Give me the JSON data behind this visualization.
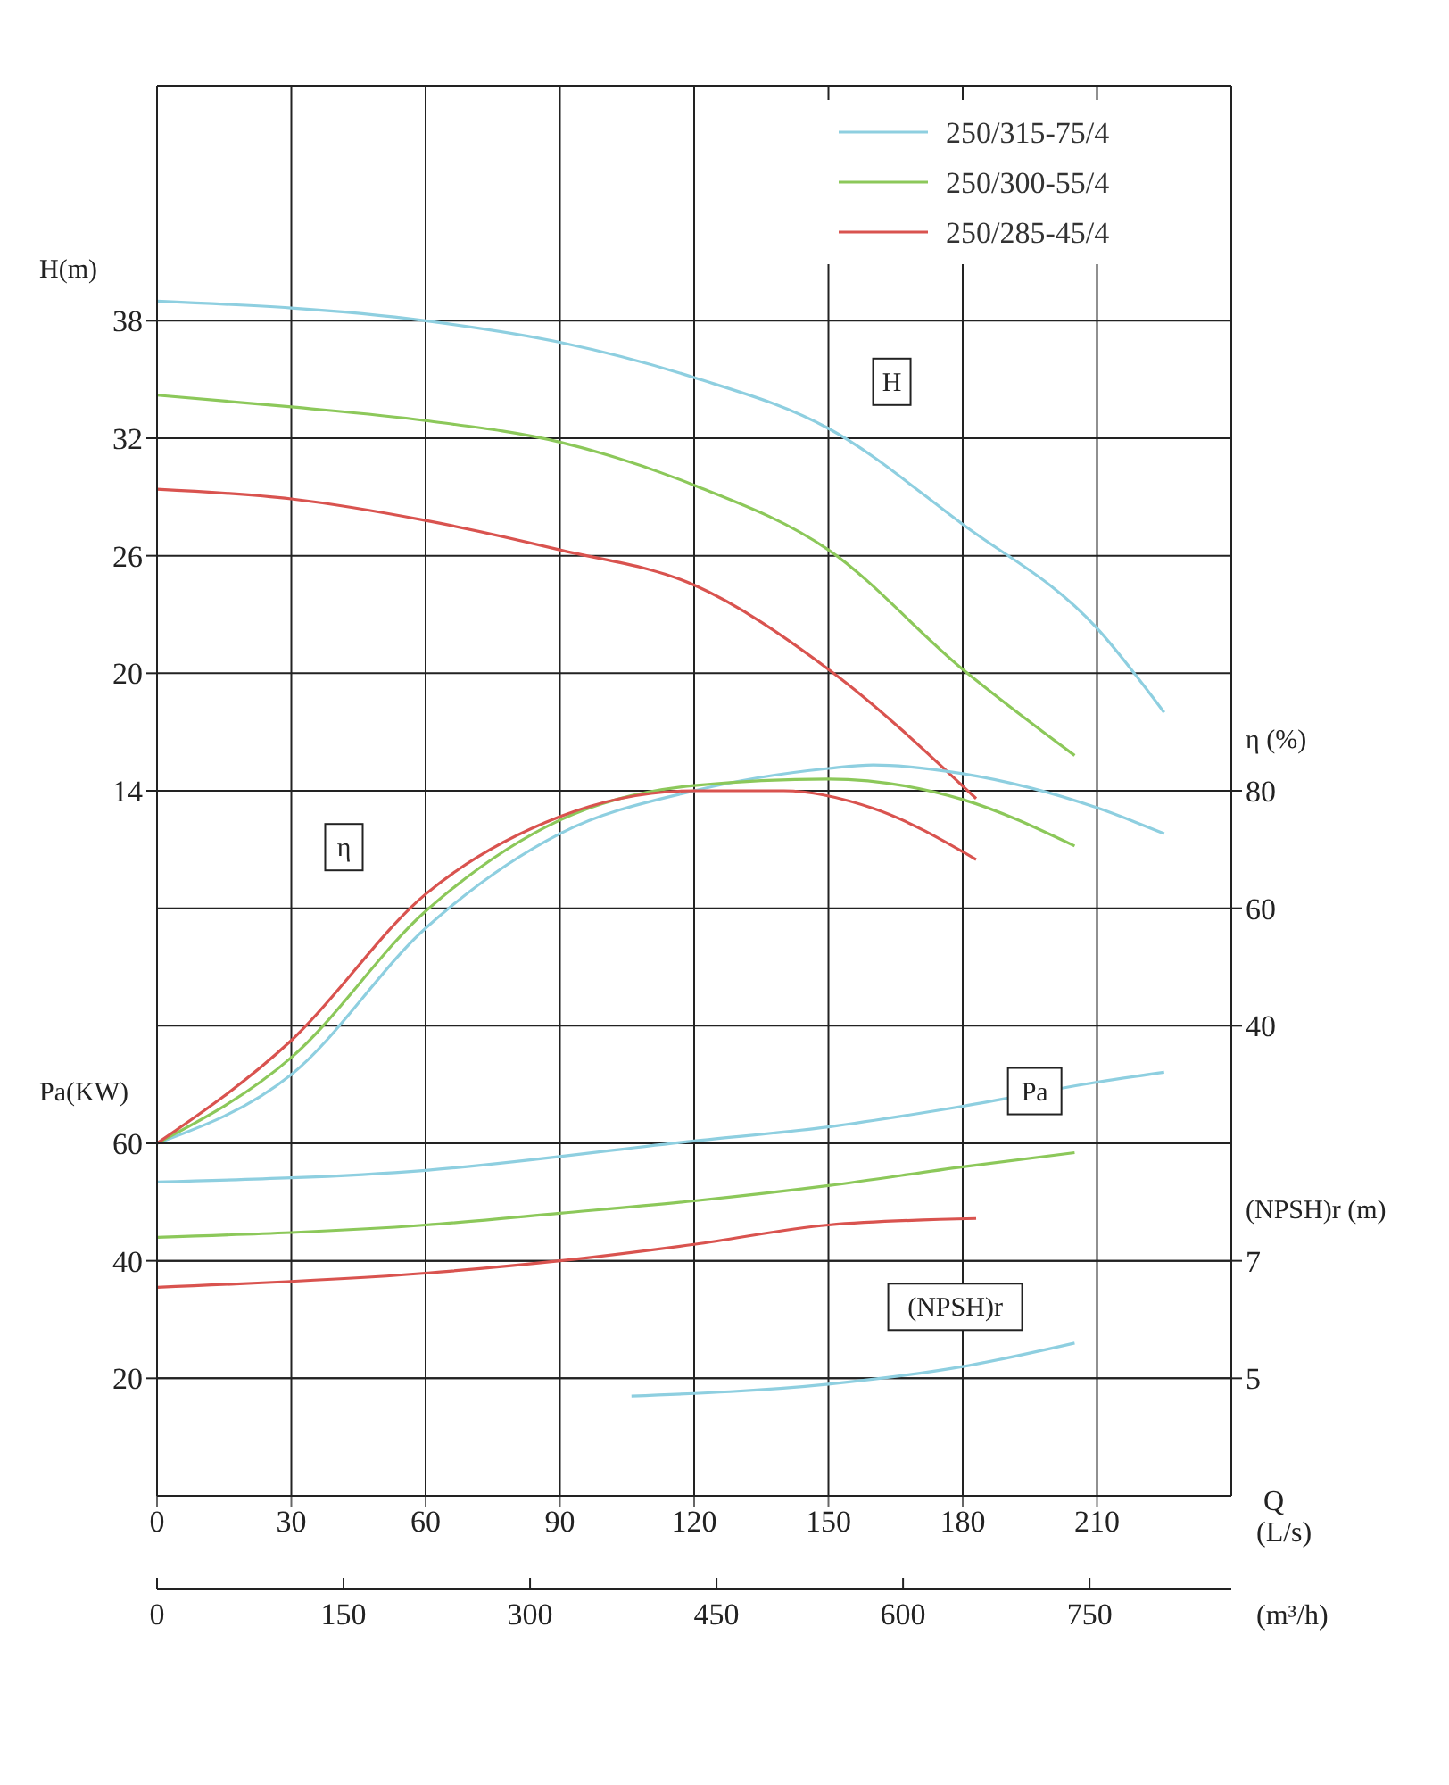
{
  "chart_data": [
    {
      "type": "line",
      "xlabel": "(L/s)",
      "ylabel": "H(m)",
      "y2label": "η (%)",
      "x2label": "(m³/h)",
      "xlim": [
        0,
        240
      ],
      "xticks": [
        0,
        30,
        60,
        90,
        120,
        150,
        180,
        210
      ],
      "x2lim": [
        0,
        864
      ],
      "x2ticks": [
        0,
        150,
        300,
        450,
        600,
        750
      ],
      "ylim": [
        -22,
        50
      ],
      "yticks": [
        14,
        20,
        26,
        32,
        38
      ],
      "y2lim": [
        -40,
        200
      ],
      "y2ticks": [
        40,
        60,
        80
      ],
      "grid": true,
      "legend": "top right",
      "marker": "none",
      "line_style": "solid",
      "annotations": [
        "H",
        "η",
        "Q"
      ],
      "series": [
        {
          "name": "250/315-75/4",
          "color": "#8ecfe0",
          "x": [
            0,
            60,
            90,
            120,
            150,
            180,
            210,
            225
          ],
          "values": [
            39,
            38,
            36.9,
            35.1,
            32.5,
            27.6,
            22.3,
            18
          ]
        },
        {
          "name": "250/300-55/4",
          "color": "#8cc85a",
          "x": [
            0,
            30,
            60,
            90,
            120,
            150,
            180,
            205
          ],
          "values": [
            34.2,
            33.6,
            32.9,
            31.8,
            29.6,
            26.3,
            20.2,
            15.8
          ]
        },
        {
          "name": "250/285-45/4",
          "color": "#d9534f",
          "x": [
            0,
            30,
            60,
            90,
            120,
            150,
            183
          ],
          "values": [
            29.4,
            28.9,
            27.8,
            26.3,
            24.5,
            20.2,
            13.6
          ]
        },
        {
          "color": "#8ecfe0",
          "axis": "y2",
          "x": [
            0,
            30,
            60,
            90,
            120,
            150,
            160,
            180,
            210,
            225
          ],
          "values": [
            20,
            31.7,
            56.6,
            72.7,
            80,
            83.8,
            84.4,
            82.9,
            77.1,
            72.7
          ]
        },
        {
          "color": "#8cc85a",
          "axis": "y2",
          "x": [
            0,
            30,
            60,
            90,
            120,
            150,
            180,
            205
          ],
          "values": [
            20,
            34.6,
            59.5,
            75,
            80.9,
            82,
            78.5,
            70.6
          ]
        },
        {
          "color": "#d9534f",
          "axis": "y2",
          "x": [
            0,
            30,
            60,
            90,
            120,
            140,
            160,
            183
          ],
          "values": [
            20,
            37.5,
            62.4,
            75.6,
            80,
            80,
            77,
            68.3
          ]
        }
      ]
    },
    {
      "type": "line",
      "ylabel": "Pa(KW)",
      "y2label": "(NPSH)r (m)",
      "xlim": [
        0,
        240
      ],
      "ylim": [
        0,
        240
      ],
      "yticks": [
        20,
        40,
        60
      ],
      "y2lim": [
        3,
        27
      ],
      "y2ticks": [
        5,
        7
      ],
      "tick_labels": "y",
      "grid": "y",
      "marker": "none",
      "line_style": "solid",
      "annotations": [
        "Pa",
        "(NPSH)r"
      ],
      "series": [
        {
          "color": "#8ecfe0",
          "x": [
            0,
            60,
            120,
            150,
            180,
            210,
            225
          ],
          "values": [
            53.4,
            55.4,
            60.4,
            62.8,
            66.3,
            70.4,
            72.1
          ]
        },
        {
          "color": "#8cc85a",
          "x": [
            0,
            60,
            90,
            120,
            150,
            180,
            205
          ],
          "values": [
            44,
            46.1,
            48.1,
            50.2,
            52.8,
            56,
            58.4
          ]
        },
        {
          "color": "#d9534f",
          "x": [
            0,
            60,
            90,
            120,
            150,
            183
          ],
          "values": [
            35.5,
            37.9,
            40,
            42.8,
            46.1,
            47.2
          ]
        },
        {
          "color": "#8ecfe0",
          "axis": "y2",
          "x": [
            106,
            150,
            180,
            205
          ],
          "values": [
            4.7,
            4.9,
            5.2,
            5.6
          ]
        }
      ]
    }
  ]
}
